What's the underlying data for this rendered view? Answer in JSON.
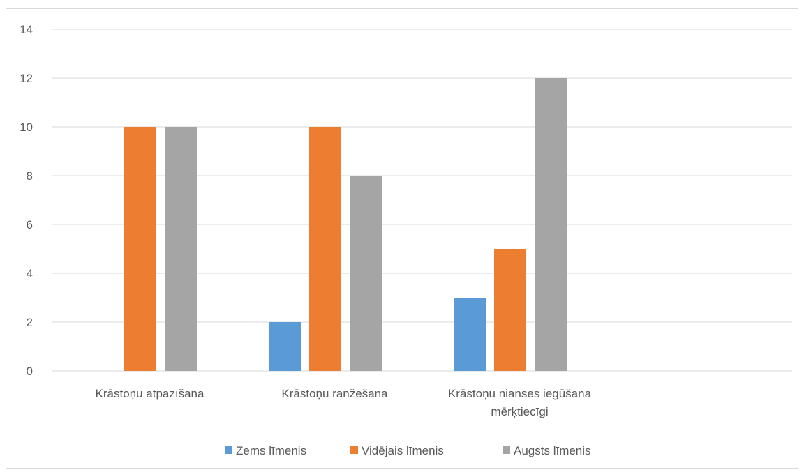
{
  "chart_data": {
    "type": "bar",
    "title": "",
    "xlabel": "",
    "ylabel": "",
    "ylim": [
      0,
      14
    ],
    "yticks": [
      0,
      2,
      4,
      6,
      8,
      10,
      12,
      14
    ],
    "grid": true,
    "legend_position": "bottom",
    "categories": [
      [
        "Krāstoņu atpazīšana"
      ],
      [
        "Krāstoņu  ranžešana"
      ],
      [
        "Krāstoņu nianses iegūšana",
        "mērķtiecīgi"
      ]
    ],
    "series": [
      {
        "name": "Zems līmenis",
        "color": "#5b9bd5",
        "values": [
          0,
          2,
          3
        ]
      },
      {
        "name": "Vidējais līmenis",
        "color": "#ed7d31",
        "values": [
          10,
          10,
          5
        ]
      },
      {
        "name": "Augsts līmenis",
        "color": "#a5a5a5",
        "values": [
          10,
          8,
          12
        ]
      }
    ]
  }
}
